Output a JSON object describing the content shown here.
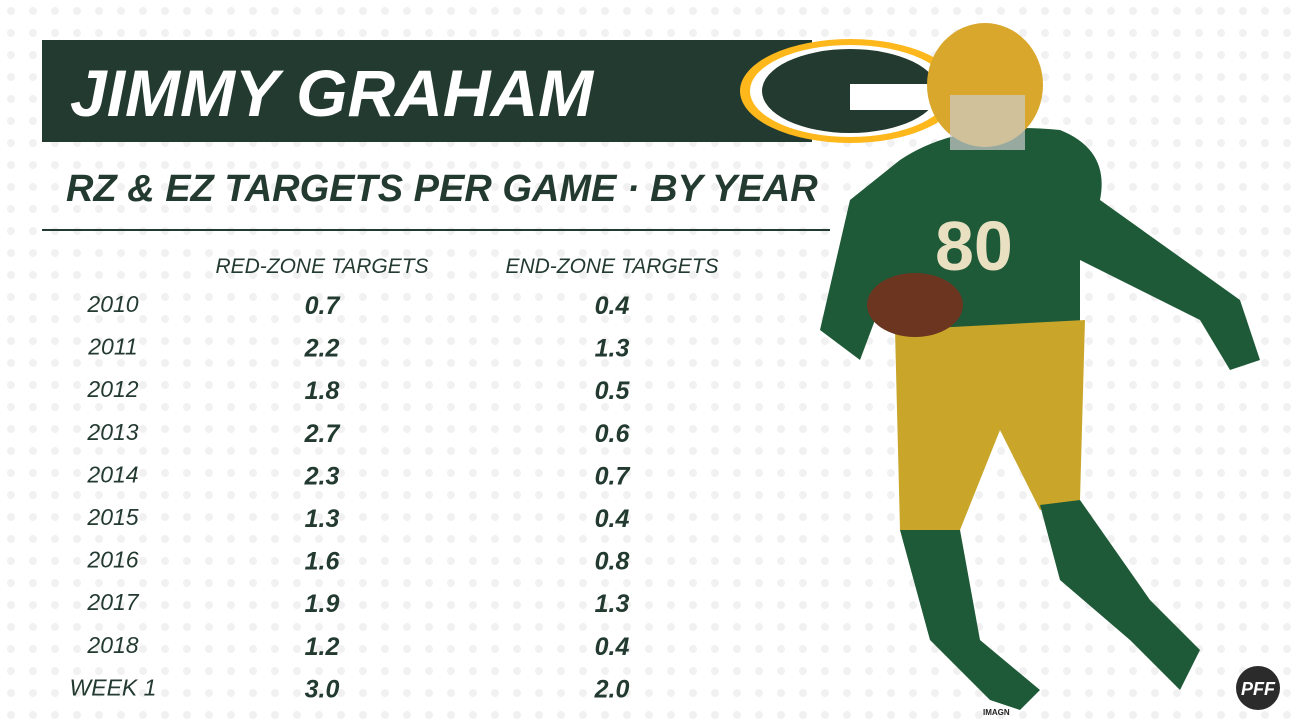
{
  "header": {
    "title": "JIMMY GRAHAM",
    "subtitle": "RZ & EZ TARGETS PER GAME · BY YEAR"
  },
  "table": {
    "columns": [
      "RED-ZONE TARGETS",
      "END-ZONE TARGETS"
    ],
    "rows": [
      [
        "2010",
        "0.7",
        "0.4"
      ],
      [
        "2011",
        "2.2",
        "1.3"
      ],
      [
        "2012",
        "1.8",
        "0.5"
      ],
      [
        "2013",
        "2.7",
        "0.6"
      ],
      [
        "2014",
        "2.3",
        "0.7"
      ],
      [
        "2015",
        "1.3",
        "0.4"
      ],
      [
        "2016",
        "1.6",
        "0.8"
      ],
      [
        "2017",
        "1.9",
        "1.3"
      ],
      [
        "2018",
        "1.2",
        "0.4"
      ],
      [
        "WEEK 1",
        "3.0",
        "2.0"
      ]
    ]
  },
  "credit": "IMAGN",
  "logo": "PFF"
}
